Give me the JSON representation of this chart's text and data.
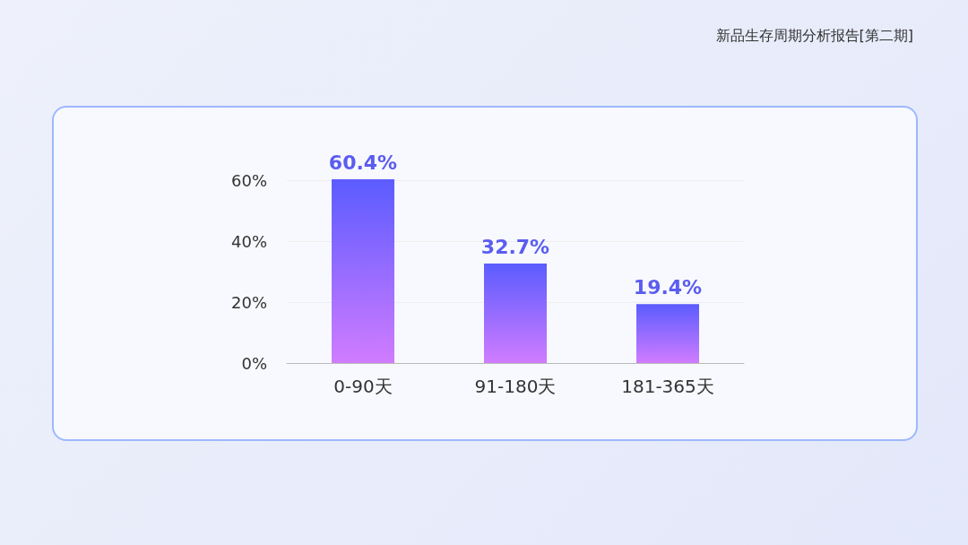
{
  "chart_data": {
    "type": "bar",
    "title": "新品生存周期分析报告[第二期]",
    "categories": [
      "0-90天",
      "91-180天",
      "181-365天"
    ],
    "values": [
      60.4,
      32.7,
      19.4
    ],
    "value_labels": [
      "60.4%",
      "32.7%",
      "19.4%"
    ],
    "color": "#5b5cff",
    "ylim": [
      0,
      61
    ],
    "yticks": [
      {
        "value": 0,
        "label": "0%"
      },
      {
        "value": 20,
        "label": "20%"
      },
      {
        "value": 40,
        "label": "40%"
      },
      {
        "value": 60,
        "label": "60%"
      }
    ],
    "grid": "y"
  }
}
